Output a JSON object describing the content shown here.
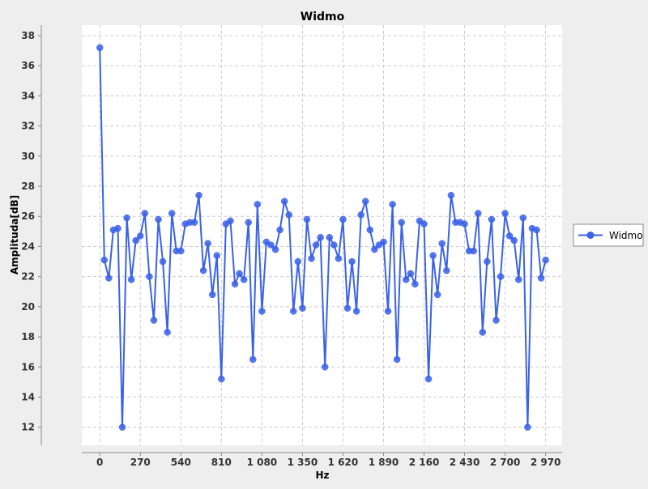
{
  "colors": {
    "background": "#eeeeee",
    "plot_background": "#ffffff",
    "grid": "#cccccc",
    "series": "#3b62e8",
    "axis": "#888888"
  },
  "chart_data": {
    "type": "line",
    "title": "Widmo",
    "xlabel": "Hz",
    "ylabel": "Amplituda[dB]",
    "xlim": [
      -120,
      3080
    ],
    "ylim": [
      10.8,
      38.7
    ],
    "xticks": [
      0,
      270,
      540,
      810,
      1080,
      1350,
      1620,
      1890,
      2160,
      2430,
      2700,
      2970
    ],
    "xtick_labels": [
      "0",
      "270",
      "540",
      "810",
      "1 080",
      "1 350",
      "1 620",
      "1 890",
      "2 160",
      "2 430",
      "2 700",
      "2 970"
    ],
    "yticks": [
      12,
      14,
      16,
      18,
      20,
      22,
      24,
      26,
      28,
      30,
      32,
      34,
      36,
      38
    ],
    "grid": true,
    "legend_position": "right",
    "series": [
      {
        "name": "Widmo",
        "x": [
          0,
          30,
          60,
          90,
          120,
          150,
          180,
          210,
          240,
          270,
          300,
          330,
          360,
          390,
          420,
          450,
          480,
          510,
          540,
          570,
          600,
          630,
          660,
          690,
          720,
          750,
          780,
          810,
          840,
          870,
          900,
          930,
          960,
          990,
          1020,
          1050,
          1080,
          1110,
          1140,
          1170,
          1200,
          1230,
          1260,
          1290,
          1320,
          1350,
          1380,
          1410,
          1440,
          1470,
          1500,
          1530,
          1560,
          1590,
          1620,
          1650,
          1680,
          1710,
          1740,
          1770,
          1800,
          1830,
          1860,
          1890,
          1920,
          1950,
          1980,
          2010,
          2040,
          2070,
          2100,
          2130,
          2160,
          2190,
          2220,
          2250,
          2280,
          2310,
          2340,
          2370,
          2400,
          2430,
          2460,
          2490,
          2520,
          2550,
          2580,
          2610,
          2640,
          2670,
          2700,
          2730,
          2760,
          2790,
          2820,
          2850,
          2880,
          2910,
          2940,
          2970
        ],
        "y": [
          37.2,
          23.1,
          21.9,
          25.1,
          25.2,
          12.0,
          25.9,
          21.8,
          24.4,
          24.7,
          26.2,
          22.0,
          19.1,
          25.8,
          23.0,
          18.3,
          26.2,
          23.7,
          23.7,
          25.5,
          25.6,
          25.6,
          27.4,
          22.4,
          24.2,
          20.8,
          23.4,
          15.2,
          25.5,
          25.7,
          21.5,
          22.2,
          21.8,
          25.6,
          16.5,
          26.8,
          19.7,
          24.3,
          24.1,
          23.8,
          25.1,
          27.0,
          26.1,
          19.7,
          23.0,
          19.9,
          25.8,
          23.2,
          24.1,
          24.6,
          16.0,
          24.6,
          24.1,
          23.2,
          25.8,
          19.9,
          23.0,
          19.7,
          26.1,
          27.0,
          25.1,
          23.8,
          24.1,
          24.3,
          19.7,
          26.8,
          16.5,
          25.6,
          21.8,
          22.2,
          21.5,
          25.7,
          25.5,
          15.2,
          23.4,
          20.8,
          24.2,
          22.4,
          27.4,
          25.6,
          25.6,
          25.5,
          23.7,
          23.7,
          26.2,
          18.3,
          23.0,
          25.8,
          19.1,
          22.0,
          26.2,
          24.7,
          24.4,
          21.8,
          25.9,
          12.0,
          25.2,
          25.1,
          21.9,
          23.1
        ]
      }
    ]
  }
}
